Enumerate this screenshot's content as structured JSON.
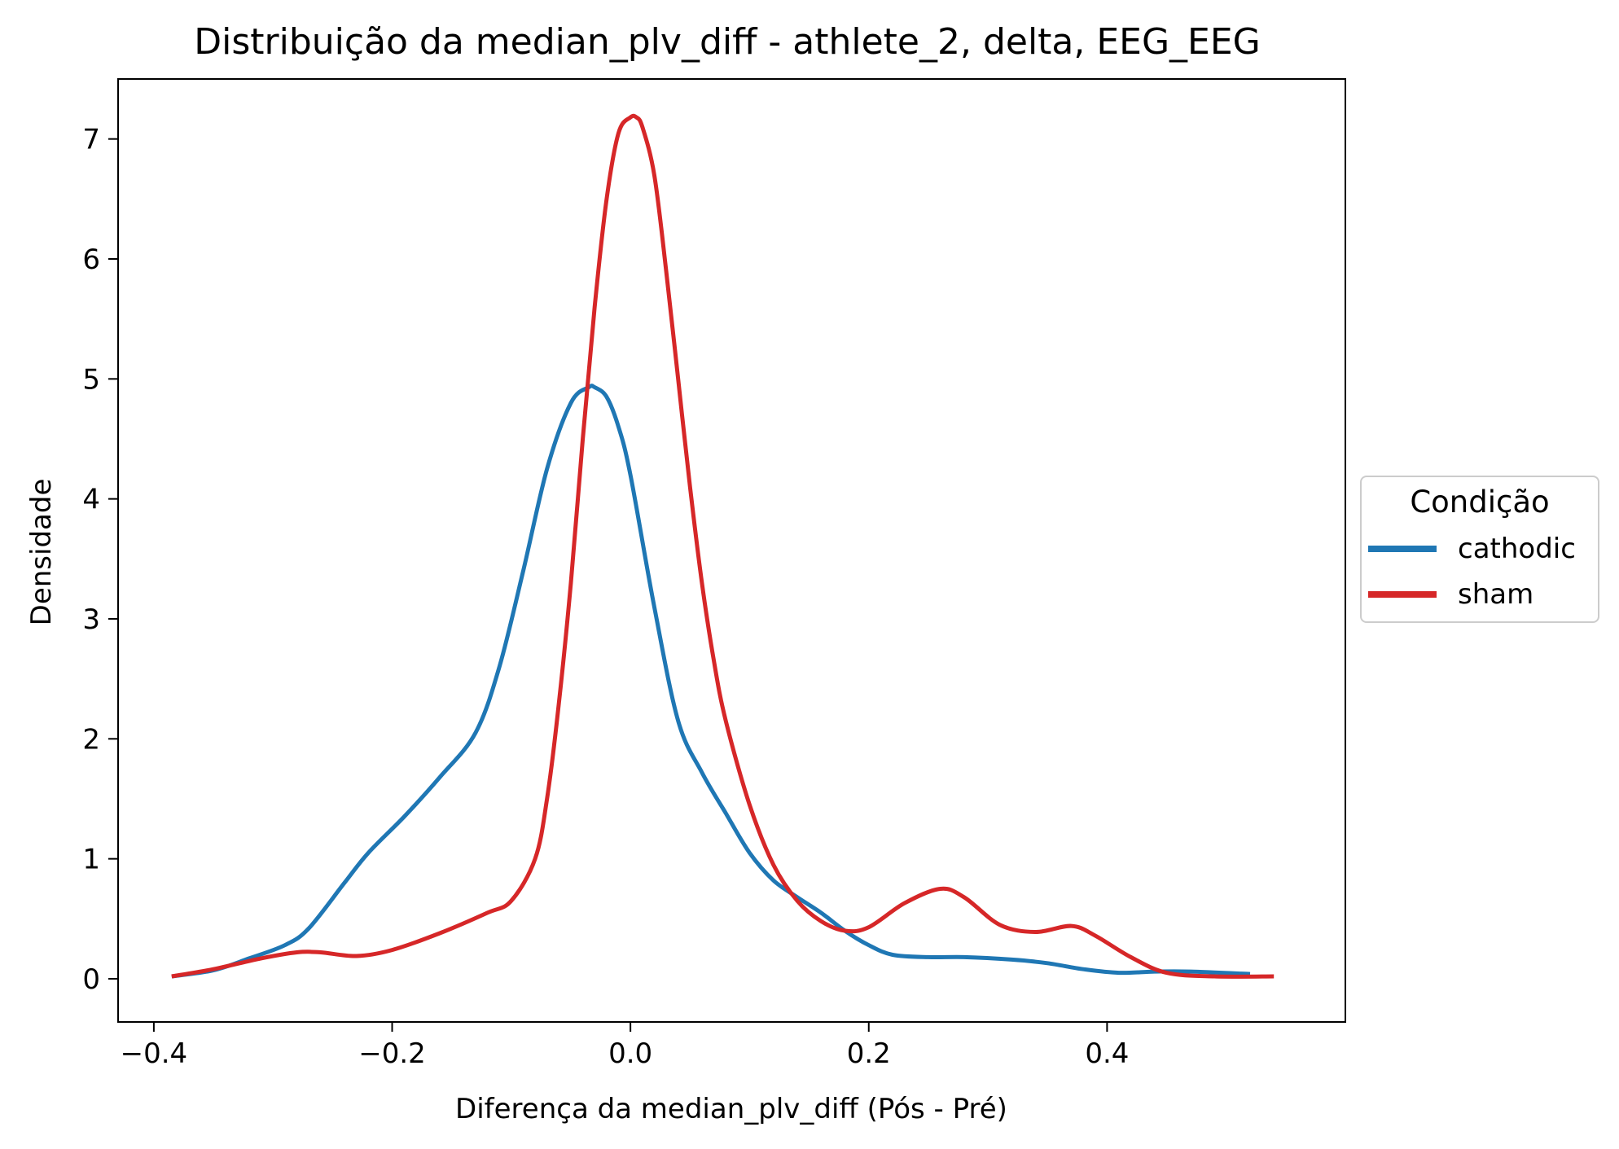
{
  "chart_data": {
    "type": "line",
    "title": "Distribuição da median_plv_diff - athlete_2, delta, EEG_EEG",
    "xlabel": "Diferença da median_plv_diff (Pós - Pré)",
    "ylabel": "Densidade",
    "xlim": [
      -0.43,
      0.6
    ],
    "ylim": [
      -0.36,
      7.5
    ],
    "xticks": [
      -0.4,
      -0.2,
      0.0,
      0.2,
      0.4
    ],
    "xtick_labels": [
      "−0.4",
      "−0.2",
      "0.0",
      "0.2",
      "0.4"
    ],
    "yticks": [
      0,
      1,
      2,
      3,
      4,
      5,
      6,
      7
    ],
    "ytick_labels": [
      "0",
      "1",
      "2",
      "3",
      "4",
      "5",
      "6",
      "7"
    ],
    "legend": {
      "title": "Condição",
      "placement": "center-right outside"
    },
    "series": [
      {
        "name": "cathodic",
        "color": "#1f77b4",
        "x": [
          -0.385,
          -0.35,
          -0.32,
          -0.29,
          -0.27,
          -0.24,
          -0.22,
          -0.19,
          -0.16,
          -0.13,
          -0.11,
          -0.09,
          -0.07,
          -0.05,
          -0.035,
          -0.03,
          -0.02,
          -0.01,
          0.0,
          0.02,
          0.04,
          0.06,
          0.08,
          0.1,
          0.12,
          0.14,
          0.16,
          0.18,
          0.2,
          0.22,
          0.25,
          0.28,
          0.32,
          0.35,
          0.38,
          0.41,
          0.44,
          0.47,
          0.52
        ],
        "y": [
          0.02,
          0.07,
          0.17,
          0.28,
          0.42,
          0.8,
          1.05,
          1.35,
          1.68,
          2.05,
          2.6,
          3.4,
          4.25,
          4.8,
          4.93,
          4.93,
          4.85,
          4.6,
          4.2,
          3.1,
          2.15,
          1.72,
          1.38,
          1.05,
          0.82,
          0.68,
          0.55,
          0.4,
          0.28,
          0.2,
          0.18,
          0.18,
          0.16,
          0.13,
          0.08,
          0.05,
          0.06,
          0.06,
          0.04
        ]
      },
      {
        "name": "sham",
        "color": "#d62728",
        "x": [
          -0.385,
          -0.35,
          -0.31,
          -0.28,
          -0.26,
          -0.23,
          -0.2,
          -0.16,
          -0.12,
          -0.1,
          -0.08,
          -0.07,
          -0.06,
          -0.05,
          -0.04,
          -0.03,
          -0.02,
          -0.01,
          0.0,
          0.005,
          0.01,
          0.02,
          0.03,
          0.04,
          0.05,
          0.06,
          0.07,
          0.08,
          0.1,
          0.12,
          0.14,
          0.16,
          0.18,
          0.2,
          0.23,
          0.26,
          0.28,
          0.31,
          0.34,
          0.37,
          0.39,
          0.42,
          0.45,
          0.49,
          0.54
        ],
        "y": [
          0.02,
          0.08,
          0.17,
          0.22,
          0.22,
          0.19,
          0.24,
          0.38,
          0.55,
          0.65,
          1.0,
          1.5,
          2.3,
          3.3,
          4.5,
          5.6,
          6.5,
          7.05,
          7.18,
          7.18,
          7.1,
          6.7,
          5.9,
          5.0,
          4.1,
          3.3,
          2.65,
          2.15,
          1.45,
          0.95,
          0.65,
          0.48,
          0.4,
          0.43,
          0.63,
          0.75,
          0.68,
          0.45,
          0.39,
          0.44,
          0.36,
          0.18,
          0.05,
          0.02,
          0.02
        ]
      }
    ]
  }
}
